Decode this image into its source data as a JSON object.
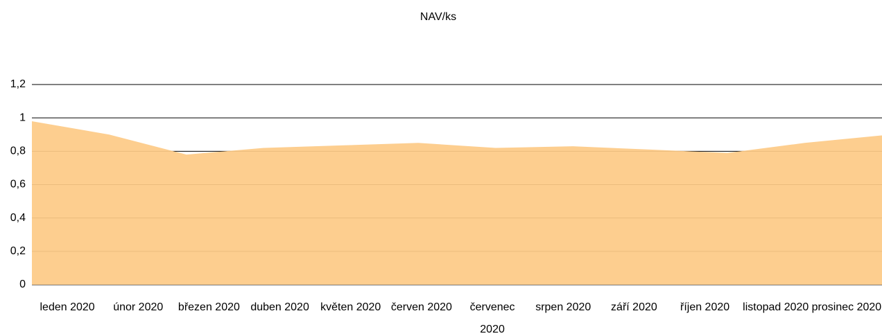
{
  "chart_data": {
    "type": "area",
    "title": "NAV/ks",
    "categories": [
      "leden 2020",
      "únor 2020",
      "březen 2020",
      "duben 2020",
      "květen 2020",
      "červen 2020",
      "červenec 2020",
      "srpen 2020",
      "září 2020",
      "říjen 2020",
      "listopad 2020",
      "prosinec 2020"
    ],
    "values": [
      0.98,
      0.9,
      0.78,
      0.82,
      0.835,
      0.85,
      0.82,
      0.83,
      0.81,
      0.79,
      0.85,
      0.895
    ],
    "color": "#fdca87",
    "ylim": [
      0,
      1.2
    ],
    "yticks": [
      0,
      {
        "value": 0.2,
        "label": "0,2"
      },
      {
        "value": 0.4,
        "label": "0,4"
      },
      {
        "value": 0.6,
        "label": "0,6"
      },
      {
        "value": 0.8,
        "label": "0,8"
      },
      1,
      {
        "value": 1.2,
        "label": "1,2"
      }
    ],
    "grid": true
  }
}
